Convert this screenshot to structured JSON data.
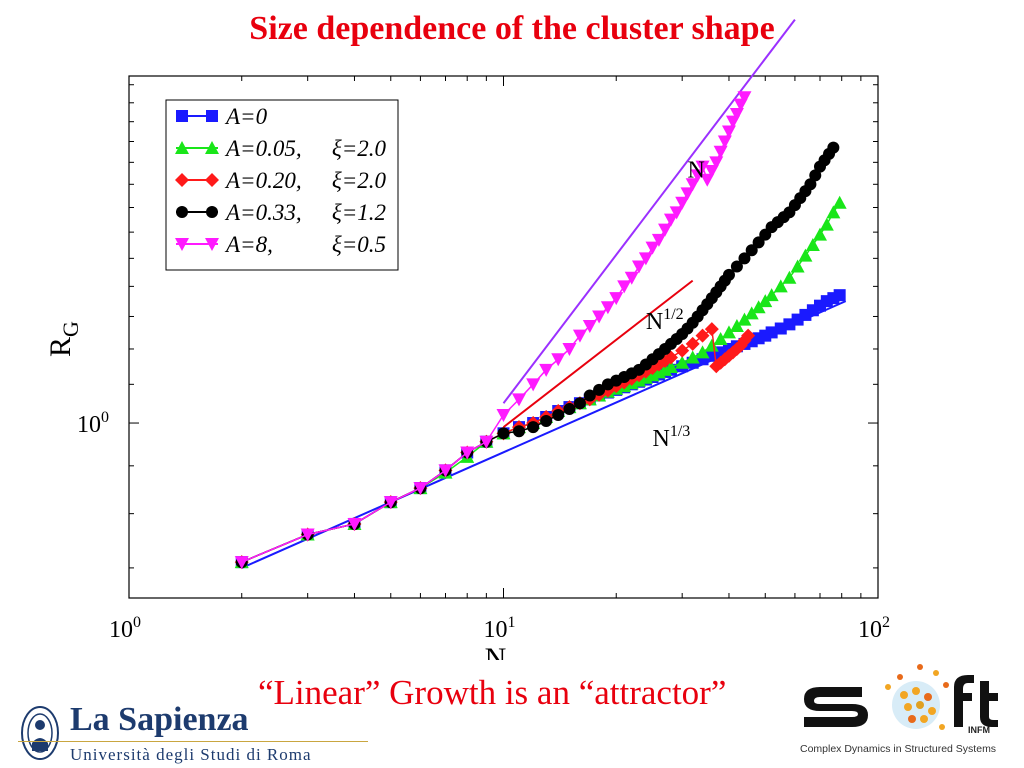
{
  "slide": {
    "title": "Size dependence of the cluster shape",
    "caption": "“Linear” Growth is an “attractor”"
  },
  "logos": {
    "sapienza_name": "La Sapienza",
    "sapienza_sub": "Università degli Studi di Roma",
    "soft_word": "S ft",
    "soft_tagline": "Complex Dynamics in Structured Systems",
    "soft_infm": "INFM"
  },
  "colors": {
    "title_red": "#e8000e",
    "blue": "#1a1aff",
    "green": "#19e619",
    "red": "#ff1a1a",
    "black": "#000000",
    "magenta": "#ff1aff",
    "purple": "#9b30ff",
    "sapienza_blue": "#1d3b6e"
  },
  "chart_data": {
    "type": "line",
    "xlabel": "N",
    "ylabel": "R_G",
    "xscale": "log",
    "yscale": "log",
    "xlim": [
      1,
      100
    ],
    "ylim": [
      0.65,
      2.35
    ],
    "x_ticks": [
      {
        "value": 1,
        "base": "10",
        "exp": "0"
      },
      {
        "value": 10,
        "base": "10",
        "exp": "1"
      },
      {
        "value": 100,
        "base": "10",
        "exp": "2"
      }
    ],
    "y_ticks": [
      {
        "value": 1,
        "base": "10",
        "exp": "0"
      }
    ],
    "grid": false,
    "legend_position": "top-left",
    "series": [
      {
        "name": "A=0",
        "name_parts": [
          "A=0"
        ],
        "color": "#1a1aff",
        "marker": "square",
        "x": [
          2,
          3,
          4,
          5,
          6,
          7,
          8,
          9,
          10,
          11,
          12,
          13,
          14,
          15,
          16,
          17,
          18,
          19,
          20,
          21,
          22,
          23,
          24,
          25,
          26,
          27,
          28,
          30,
          32,
          34,
          36,
          38,
          40,
          42,
          44,
          46,
          48,
          50,
          52,
          55,
          58,
          61,
          64,
          67,
          70,
          73,
          76,
          79
        ],
        "y": [
          0.71,
          0.76,
          0.78,
          0.823,
          0.852,
          0.89,
          0.93,
          0.955,
          0.975,
          0.99,
          1.0,
          1.015,
          1.03,
          1.04,
          1.05,
          1.06,
          1.07,
          1.078,
          1.085,
          1.092,
          1.1,
          1.107,
          1.113,
          1.12,
          1.127,
          1.134,
          1.14,
          1.15,
          1.16,
          1.17,
          1.18,
          1.19,
          1.2,
          1.208,
          1.215,
          1.223,
          1.232,
          1.24,
          1.25,
          1.262,
          1.275,
          1.29,
          1.305,
          1.32,
          1.335,
          1.35,
          1.36,
          1.37
        ]
      },
      {
        "name": "A=0.05, ξ=2.0",
        "name_parts": [
          "A=0.05,",
          "ξ=2.0"
        ],
        "color": "#19e619",
        "marker": "triangle-up",
        "x": [
          2,
          3,
          4,
          5,
          6,
          7,
          8,
          9,
          10,
          11,
          12,
          13,
          14,
          15,
          16,
          17,
          18,
          19,
          20,
          21,
          22,
          23,
          24,
          25,
          26,
          27,
          28,
          30,
          32,
          34,
          36,
          38,
          40,
          42,
          44,
          46,
          48,
          50,
          52,
          55,
          58,
          61,
          64,
          67,
          70,
          73,
          76,
          79
        ],
        "y": [
          0.71,
          0.76,
          0.78,
          0.823,
          0.852,
          0.885,
          0.92,
          0.955,
          0.975,
          0.99,
          1.0,
          1.015,
          1.03,
          1.04,
          1.05,
          1.06,
          1.07,
          1.08,
          1.088,
          1.095,
          1.103,
          1.11,
          1.118,
          1.125,
          1.133,
          1.14,
          1.148,
          1.16,
          1.175,
          1.19,
          1.21,
          1.23,
          1.25,
          1.27,
          1.29,
          1.31,
          1.33,
          1.35,
          1.37,
          1.4,
          1.43,
          1.47,
          1.51,
          1.55,
          1.59,
          1.63,
          1.68,
          1.72
        ]
      },
      {
        "name": "A=0.20, ξ=2.0",
        "name_parts": [
          "A=0.20,",
          "ξ=2.0"
        ],
        "color": "#ff1a1a",
        "marker": "diamond",
        "x": [
          2,
          3,
          4,
          5,
          6,
          7,
          8,
          9,
          10,
          11,
          12,
          13,
          14,
          15,
          16,
          17,
          18,
          19,
          20,
          21,
          22,
          23,
          24,
          25,
          26,
          27,
          28,
          30,
          32,
          34,
          36,
          37,
          38,
          39,
          40,
          41,
          42,
          43,
          44,
          45
        ],
        "y": [
          0.71,
          0.76,
          0.78,
          0.823,
          0.852,
          0.89,
          0.93,
          0.955,
          0.975,
          0.99,
          1.0,
          1.015,
          1.03,
          1.04,
          1.05,
          1.06,
          1.072,
          1.083,
          1.095,
          1.105,
          1.115,
          1.125,
          1.135,
          1.145,
          1.155,
          1.165,
          1.175,
          1.195,
          1.215,
          1.24,
          1.26,
          1.15,
          1.16,
          1.17,
          1.18,
          1.19,
          1.2,
          1.21,
          1.225,
          1.24
        ]
      },
      {
        "name": "A=0.33, ξ=1.2",
        "name_parts": [
          "A=0.33,",
          "ξ=1.2"
        ],
        "color": "#000000",
        "marker": "circle",
        "x": [
          2,
          3,
          4,
          5,
          6,
          7,
          8,
          9,
          10,
          11,
          12,
          13,
          14,
          15,
          16,
          17,
          18,
          19,
          20,
          21,
          22,
          23,
          24,
          25,
          26,
          27,
          28,
          29,
          30,
          31,
          32,
          33,
          34,
          35,
          36,
          37,
          38,
          39,
          40,
          42,
          44,
          46,
          48,
          50,
          52,
          54,
          56,
          58,
          60,
          62,
          64,
          66,
          68,
          70,
          72,
          74,
          76
        ],
        "y": [
          0.71,
          0.76,
          0.78,
          0.823,
          0.852,
          0.89,
          0.93,
          0.955,
          0.975,
          0.98,
          0.99,
          1.005,
          1.02,
          1.035,
          1.05,
          1.07,
          1.085,
          1.1,
          1.11,
          1.12,
          1.13,
          1.14,
          1.155,
          1.17,
          1.185,
          1.2,
          1.215,
          1.23,
          1.245,
          1.262,
          1.28,
          1.3,
          1.32,
          1.34,
          1.36,
          1.38,
          1.4,
          1.42,
          1.44,
          1.47,
          1.5,
          1.53,
          1.56,
          1.59,
          1.62,
          1.64,
          1.66,
          1.68,
          1.71,
          1.74,
          1.77,
          1.8,
          1.84,
          1.88,
          1.91,
          1.94,
          1.97
        ]
      },
      {
        "name": "A=8, ξ=0.5",
        "name_parts": [
          "A=8,",
          "ξ=0.5"
        ],
        "color": "#ff1aff",
        "marker": "triangle-down",
        "x": [
          2,
          3,
          4,
          5,
          6,
          7,
          8,
          9,
          10,
          11,
          12,
          13,
          14,
          15,
          16,
          17,
          18,
          19,
          20,
          21,
          22,
          23,
          24,
          25,
          26,
          27,
          28,
          29,
          30,
          31,
          32,
          33,
          34,
          35,
          36,
          37,
          38,
          39,
          40,
          41,
          42,
          43,
          44
        ],
        "y": [
          0.71,
          0.76,
          0.78,
          0.823,
          0.852,
          0.89,
          0.93,
          0.955,
          1.02,
          1.06,
          1.1,
          1.14,
          1.17,
          1.2,
          1.24,
          1.27,
          1.3,
          1.33,
          1.36,
          1.4,
          1.43,
          1.47,
          1.5,
          1.54,
          1.57,
          1.61,
          1.65,
          1.68,
          1.72,
          1.76,
          1.8,
          1.84,
          1.88,
          1.82,
          1.86,
          1.9,
          1.95,
          2.0,
          2.05,
          2.1,
          2.14,
          2.19,
          2.23
        ]
      }
    ],
    "reference_lines": [
      {
        "label": "N",
        "exp": "",
        "color": "#9b30ff",
        "x": [
          10,
          60
        ],
        "y": [
          1.05,
          2.7
        ],
        "label_at": [
          31,
          1.83
        ]
      },
      {
        "label": "N",
        "exp": "1/2",
        "color": "#e8000e",
        "x": [
          10,
          32
        ],
        "y": [
          0.99,
          1.42
        ],
        "label_at": [
          24,
          1.26
        ]
      },
      {
        "label": "N",
        "exp": "1/3",
        "color": "#1a1aff",
        "x": [
          2,
          82
        ],
        "y": [
          0.7,
          1.35
        ],
        "label_at": [
          25,
          0.945
        ]
      }
    ]
  }
}
